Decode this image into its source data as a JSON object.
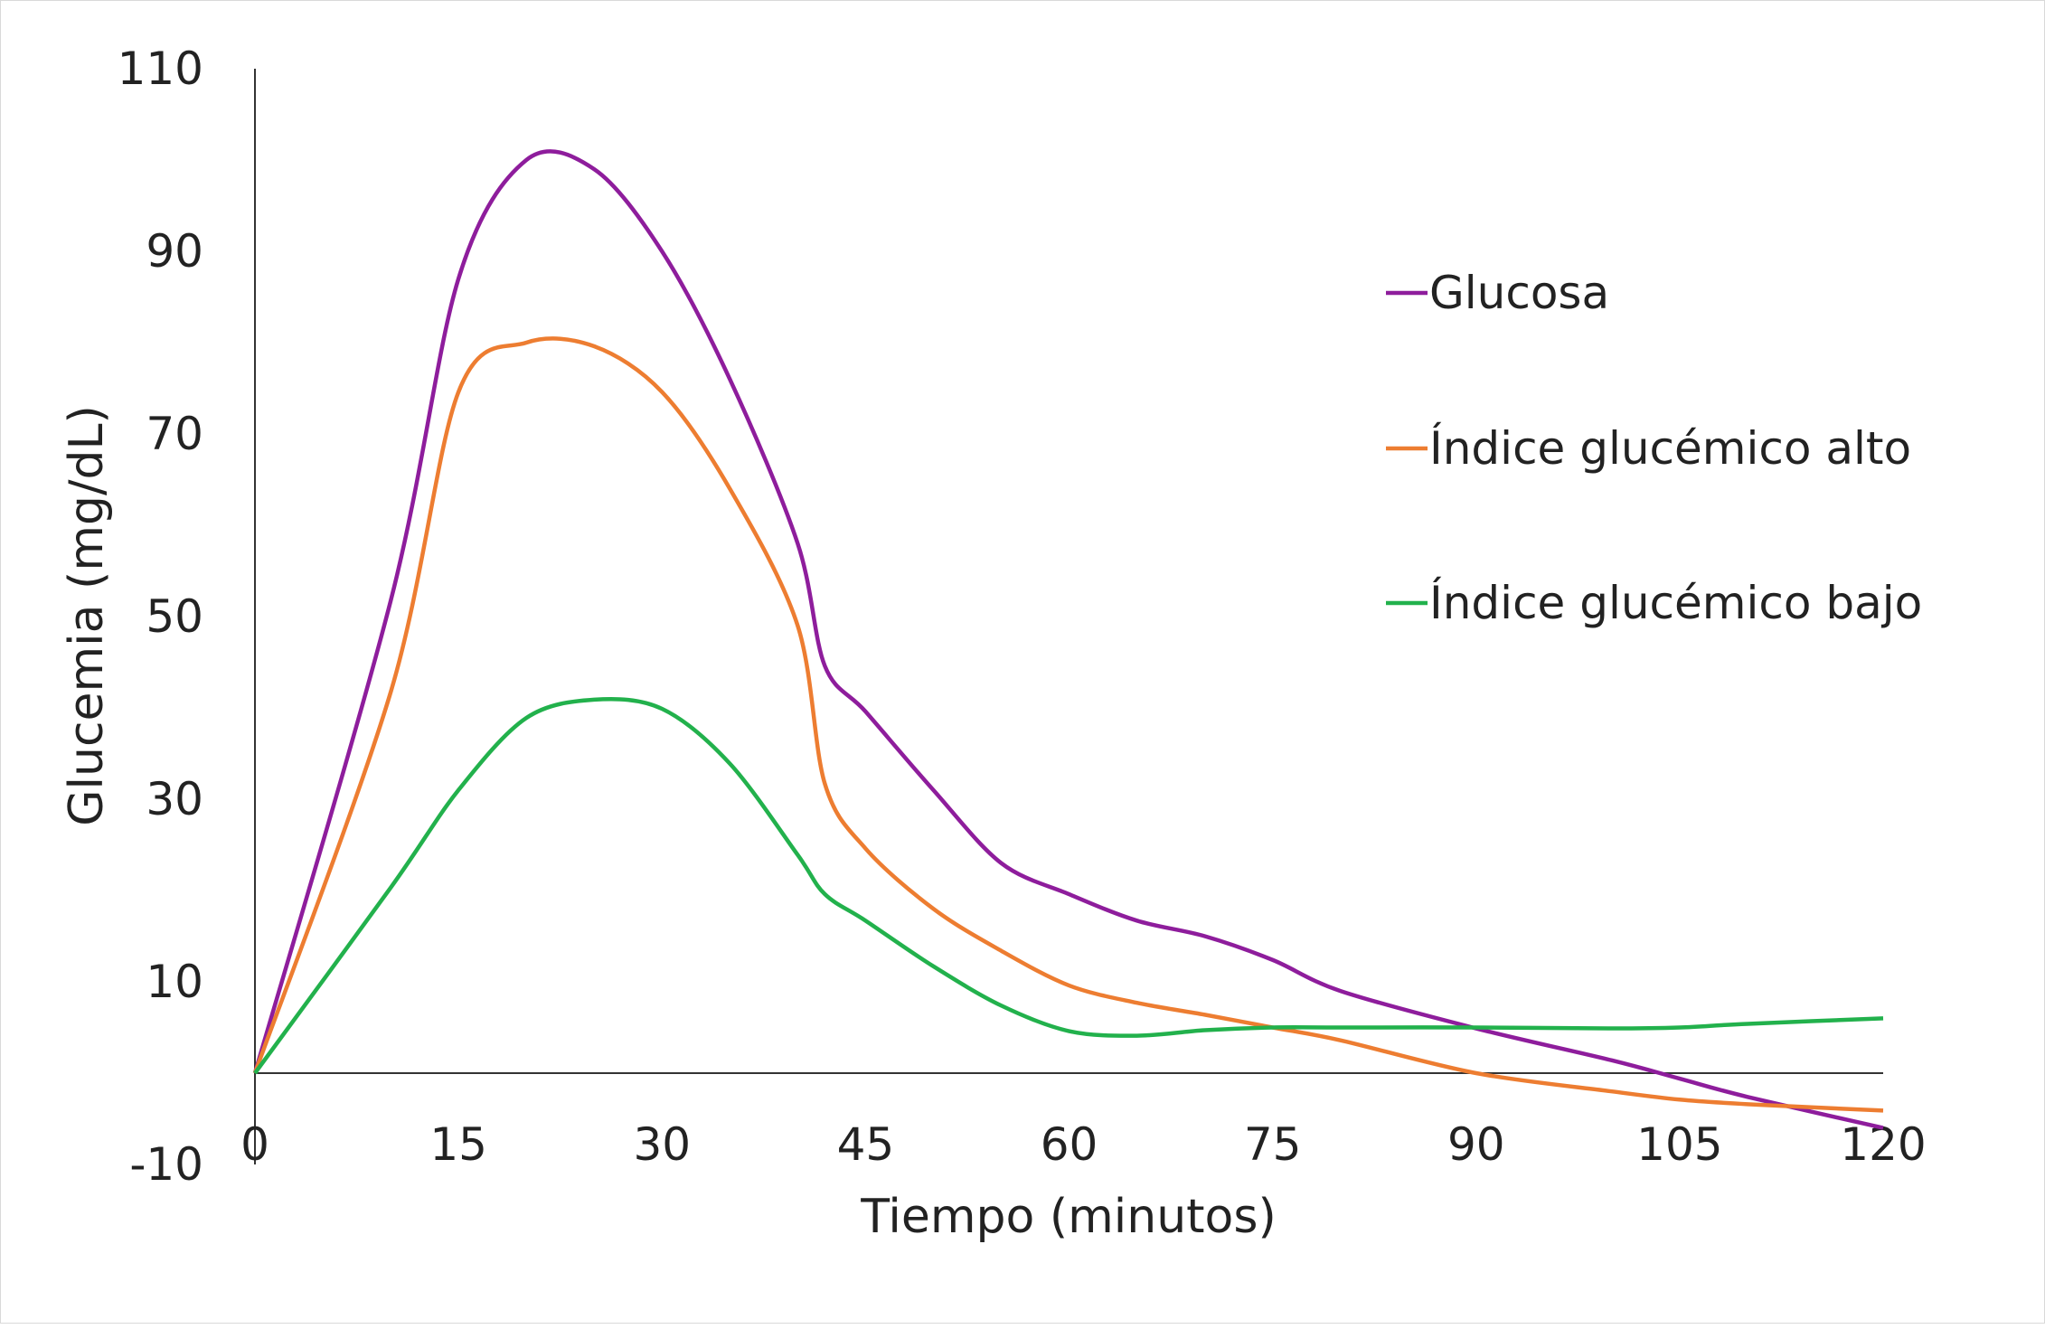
{
  "chart_data": {
    "type": "line",
    "title": "",
    "xlabel": "Tiempo (minutos)",
    "ylabel": "Glucemia (mg/dL)",
    "xlim": [
      0,
      120
    ],
    "ylim": [
      -10,
      110
    ],
    "xticks": [
      "0",
      "15",
      "30",
      "45",
      "60",
      "75",
      "90",
      "105",
      "120"
    ],
    "yticks": [
      "110",
      "90",
      "70",
      "50",
      "30",
      "10",
      "-10"
    ],
    "grid": false,
    "legend_position": "right",
    "x": [
      0,
      10,
      15,
      20,
      25,
      30,
      35,
      40,
      42,
      45,
      50,
      55,
      60,
      65,
      70,
      75,
      80,
      90,
      100,
      105,
      110,
      120
    ],
    "series": [
      {
        "name": "Glucosa",
        "color": "#8E1D9C",
        "values": [
          0,
          51.7,
          87,
          100,
          99,
          90,
          76,
          58,
          44.6,
          39.6,
          31,
          23,
          19.6,
          16.7,
          15,
          12.4,
          9,
          4.9,
          1.4,
          -0.6,
          -2.6,
          -6
        ]
      },
      {
        "name": "Índice glucémico alto",
        "color": "#ED7D31",
        "values": [
          0,
          41.7,
          74.6,
          80,
          79.6,
          74.6,
          64,
          49,
          31.7,
          24.6,
          18,
          13.4,
          9.6,
          7.7,
          6.4,
          5,
          3.6,
          0,
          -2,
          -2.9,
          -3.4,
          -4.1
        ]
      },
      {
        "name": "Índice glucémico bajo",
        "color": "#22B14C",
        "values": [
          0,
          20.3,
          31,
          38.9,
          40.9,
          39.9,
          33.9,
          23.9,
          19.6,
          16.7,
          11.7,
          7.4,
          4.6,
          4.1,
          4.7,
          5,
          5,
          5,
          4.9,
          5,
          5.4,
          6
        ]
      }
    ]
  }
}
